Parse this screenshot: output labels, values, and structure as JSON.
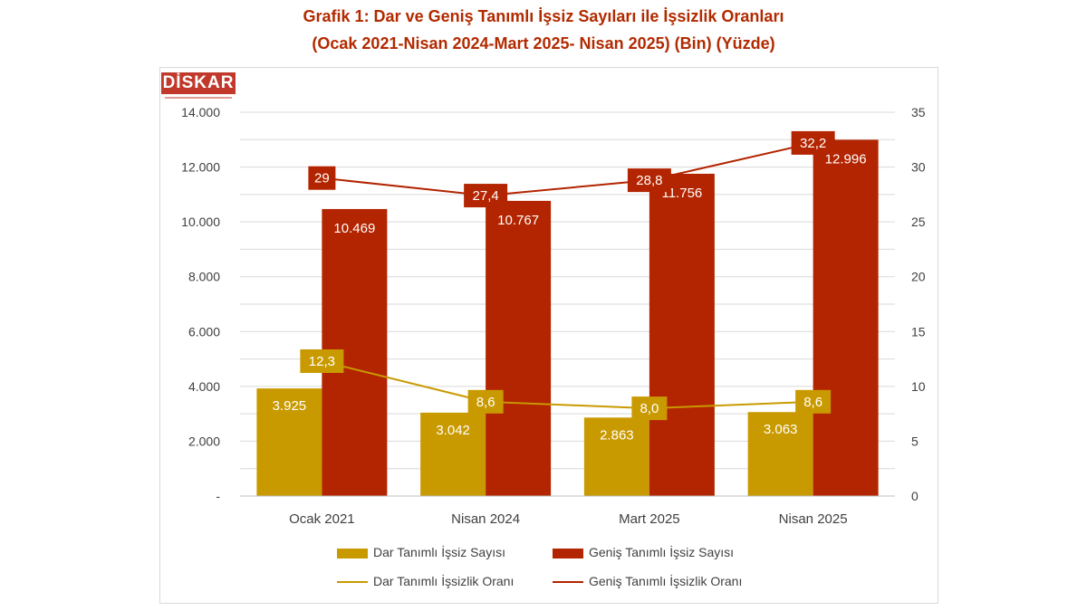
{
  "title_line1": "Grafik 1: Dar ve Geniş Tanımlı İşsiz Sayıları ile İşsizlik Oranları",
  "title_line2": "(Ocak 2021-Nisan 2024-Mart 2025- Nisan 2025) (Bin) (Yüzde)",
  "logo_text": "DİSKAR",
  "colors": {
    "title": "#b22a00",
    "dar": "#c99a00",
    "genis": "#b32400",
    "grid": "#d9d9d9",
    "axis_text": "#404040"
  },
  "chart_data": {
    "type": "bar",
    "categories": [
      "Ocak 2021",
      "Nisan 2024",
      "Mart 2025",
      "Nisan 2025"
    ],
    "series": [
      {
        "name": "Dar Tanımlı İşsiz Sayısı",
        "type": "bar",
        "axis": "left",
        "values": [
          3925,
          3042,
          2863,
          3063
        ],
        "labels": [
          "3.925",
          "3.042",
          "2.863",
          "3.063"
        ]
      },
      {
        "name": "Geniş Tanımlı İşsiz Sayısı",
        "type": "bar",
        "axis": "left",
        "values": [
          10469,
          10767,
          11756,
          12996
        ],
        "labels": [
          "10.469",
          "10.767",
          "11.756",
          "12.996"
        ]
      },
      {
        "name": "Dar Tanımlı İşsizlik Oranı",
        "type": "line",
        "axis": "right",
        "values": [
          12.3,
          8.6,
          8.0,
          8.6
        ],
        "labels": [
          "12,3",
          "8,6",
          "8,0",
          "8,6"
        ]
      },
      {
        "name": "Geniş Tanımlı İşsizlik Oranı",
        "type": "line",
        "axis": "right",
        "values": [
          29,
          27.4,
          28.8,
          32.2
        ],
        "labels": [
          "29",
          "27,4",
          "28,8",
          "32,2"
        ]
      }
    ],
    "ylim_left": [
      0,
      14000
    ],
    "ylim_right": [
      0,
      35
    ],
    "left_ticks": [
      0,
      2000,
      4000,
      6000,
      8000,
      10000,
      12000,
      14000
    ],
    "left_tick_labels": [
      "-",
      "2.000",
      "4.000",
      "6.000",
      "8.000",
      "10.000",
      "12.000",
      "14.000"
    ],
    "right_ticks": [
      0,
      5,
      10,
      15,
      20,
      25,
      30,
      35
    ],
    "right_tick_labels": [
      "0",
      "5",
      "10",
      "15",
      "20",
      "25",
      "30",
      "35"
    ],
    "grid": true,
    "legend_position": "bottom"
  }
}
